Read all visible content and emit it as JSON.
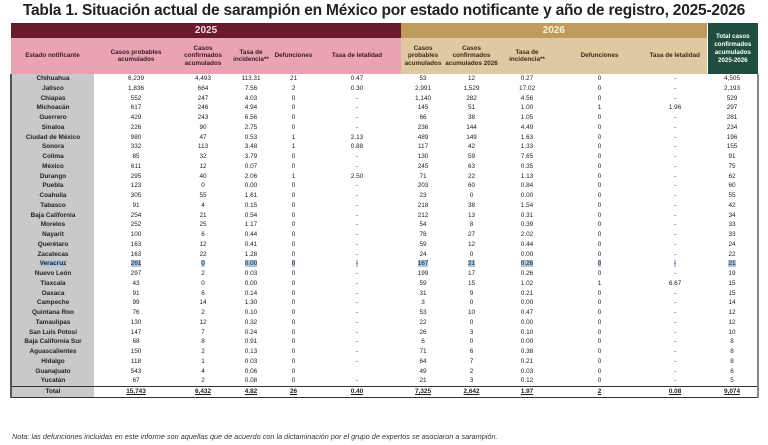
{
  "title": "Tabla 1. Situación actual de sarampión en México por estado notificante y año de registro, 2025-2026",
  "colors": {
    "year_2025": "#6b1a2e",
    "header_2025": "#e9a3b3",
    "year_2026": "#bf9c5e",
    "header_2026": "#dec9a3",
    "total_header": "#1f4e40",
    "state_column": "#c9c9c9",
    "selection": "#a9c6e2"
  },
  "header": {
    "year_2025": "2025",
    "year_2026": "2026",
    "state": "Estado notificante",
    "total": "Total casos confirmados acumulados 2025-2026",
    "cols_2025": [
      "Casos probables acumulados",
      "Casos confirmados acumulados",
      "Tasa de incidencia**",
      "Defunciones",
      "Tasa de letalidad"
    ],
    "cols_2026": [
      "Casos probables acumulados",
      "Casos confirmados acumulados 2026",
      "Tasa de incidencia**",
      "Defunciones",
      "Tasa de letalidad"
    ]
  },
  "selected_row": "Veracruz",
  "rows": [
    [
      "Chihuahua",
      "6,239",
      "4,493",
      "113.31",
      "21",
      "0.47",
      "53",
      "12",
      "0.27",
      "0",
      "-",
      "4,505"
    ],
    [
      "Jalisco",
      "1,836",
      "664",
      "7.56",
      "2",
      "0.30",
      "2,991",
      "1,529",
      "17.02",
      "0",
      "-",
      "2,193"
    ],
    [
      "Chiapas",
      "552",
      "247",
      "4.03",
      "0",
      "-",
      "1,140",
      "282",
      "4.56",
      "0",
      "-",
      "529"
    ],
    [
      "Michoacán",
      "617",
      "246",
      "4.94",
      "0",
      "-",
      "145",
      "51",
      "1.00",
      "1",
      "1.96",
      "297"
    ],
    [
      "Guerrero",
      "429",
      "243",
      "6.56",
      "0",
      "-",
      "66",
      "38",
      "1.05",
      "0",
      "-",
      "281"
    ],
    [
      "Sinaloa",
      "226",
      "90",
      "2.75",
      "0",
      "-",
      "236",
      "144",
      "4.49",
      "0",
      "-",
      "234"
    ],
    [
      "Ciudad de México",
      "980",
      "47",
      "0.53",
      "1",
      "2.13",
      "489",
      "149",
      "1.63",
      "0",
      "-",
      "196"
    ],
    [
      "Sonora",
      "332",
      "113",
      "3.48",
      "1",
      "0.88",
      "117",
      "42",
      "1.33",
      "0",
      "-",
      "155"
    ],
    [
      "Colima",
      "85",
      "32",
      "3.79",
      "0",
      "-",
      "130",
      "59",
      "7.65",
      "0",
      "-",
      "91"
    ],
    [
      "México",
      "611",
      "12",
      "0.07",
      "0",
      "-",
      "245",
      "63",
      "0.35",
      "0",
      "-",
      "75"
    ],
    [
      "Durango",
      "295",
      "40",
      "2.06",
      "1",
      "2.50",
      "71",
      "22",
      "1.13",
      "0",
      "-",
      "62"
    ],
    [
      "Puebla",
      "123",
      "0",
      "0.00",
      "0",
      "-",
      "203",
      "60",
      "0.84",
      "0",
      "-",
      "60"
    ],
    [
      "Coahuila",
      "305",
      "55",
      "1.61",
      "0",
      "-",
      "23",
      "0",
      "0.00",
      "0",
      "-",
      "55"
    ],
    [
      "Tabasco",
      "91",
      "4",
      "0.15",
      "0",
      "-",
      "218",
      "38",
      "1.54",
      "0",
      "-",
      "42"
    ],
    [
      "Baja California",
      "254",
      "21",
      "0.54",
      "0",
      "-",
      "212",
      "13",
      "0.31",
      "0",
      "-",
      "34"
    ],
    [
      "Morelos",
      "252",
      "25",
      "1.17",
      "0",
      "-",
      "54",
      "8",
      "0.39",
      "0",
      "-",
      "33"
    ],
    [
      "Nayarit",
      "100",
      "6",
      "0.44",
      "0",
      "-",
      "78",
      "27",
      "2.02",
      "0",
      "-",
      "33"
    ],
    [
      "Querétaro",
      "163",
      "12",
      "0.41",
      "0",
      "-",
      "59",
      "12",
      "0.44",
      "0",
      "-",
      "24"
    ],
    [
      "Zacatecas",
      "163",
      "22",
      "1.28",
      "0",
      "-",
      "24",
      "0",
      "0.00",
      "0",
      "-",
      "22"
    ],
    [
      "Veracruz",
      "261",
      "0",
      "0.00",
      "0",
      "-",
      "167",
      "21",
      "0.26",
      "0",
      "-",
      "21"
    ],
    [
      "Nuevo León",
      "297",
      "2",
      "0.03",
      "0",
      "-",
      "199",
      "17",
      "0.26",
      "0",
      "-",
      "19"
    ],
    [
      "Tlaxcala",
      "43",
      "0",
      "0.00",
      "0",
      "-",
      "59",
      "15",
      "1.02",
      "1",
      "6.67",
      "15"
    ],
    [
      "Oaxaca",
      "91",
      "6",
      "0.14",
      "0",
      "-",
      "31",
      "9",
      "0.21",
      "0",
      "-",
      "15"
    ],
    [
      "Campeche",
      "99",
      "14",
      "1.30",
      "0",
      "-",
      "3",
      "0",
      "0.00",
      "0",
      "-",
      "14"
    ],
    [
      "Quintana Roo",
      "76",
      "2",
      "0.10",
      "0",
      "-",
      "53",
      "10",
      "0.47",
      "0",
      "-",
      "12"
    ],
    [
      "Tamaulipas",
      "130",
      "12",
      "0.32",
      "0",
      "-",
      "22",
      "0",
      "0.00",
      "0",
      "-",
      "12"
    ],
    [
      "San Luis Potosí",
      "147",
      "7",
      "0.24",
      "0",
      "-",
      "26",
      "3",
      "0.10",
      "0",
      "-",
      "10"
    ],
    [
      "Baja California Sur",
      "68",
      "8",
      "0.91",
      "0",
      "-",
      "6",
      "0",
      "0.00",
      "0",
      "-",
      "8"
    ],
    [
      "Aguascalientes",
      "150",
      "2",
      "0.13",
      "0",
      "-",
      "71",
      "6",
      "0.38",
      "0",
      "-",
      "8"
    ],
    [
      "Hidalgo",
      "118",
      "1",
      "0.03",
      "0",
      "-",
      "64",
      "7",
      "0.21",
      "0",
      "-",
      "8"
    ],
    [
      "Guanajuato",
      "543",
      "4",
      "0.06",
      "0",
      "",
      "49",
      "2",
      "0.03",
      "0",
      "-",
      "6"
    ],
    [
      "Yucatán",
      "67",
      "2",
      "0.08",
      "0",
      "-",
      "21",
      "3",
      "0.12",
      "0",
      "-",
      "5"
    ]
  ],
  "total_row": [
    "Total",
    "15,743",
    "6,432",
    "4.82",
    "26",
    "0.40",
    "7,325",
    "2,642",
    "1.97",
    "2",
    "0.08",
    "9,074"
  ],
  "note": "Nota: las defunciones incluidas en este informe son aquellas que de acuerdo con la dictaminación por el grupo de expertos se asociaron a sarampión."
}
